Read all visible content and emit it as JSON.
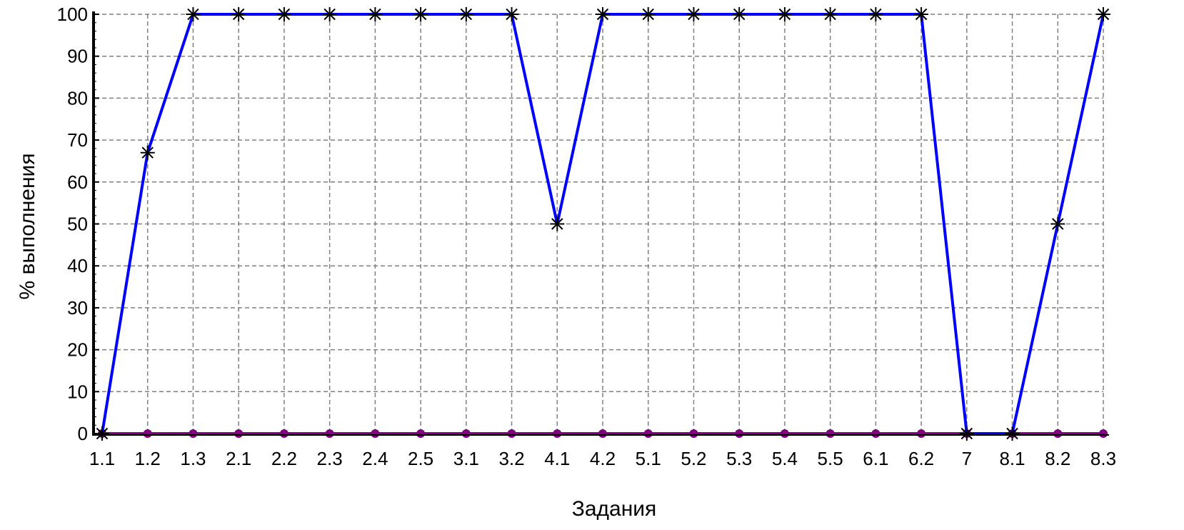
{
  "chart_data": {
    "type": "line",
    "xlabel": "Задания",
    "ylabel": "% выполнения",
    "categories": [
      "1.1",
      "1.2",
      "1.3",
      "2.1",
      "2.2",
      "2.3",
      "2.4",
      "2.5",
      "3.1",
      "3.2",
      "4.1",
      "4.2",
      "5.1",
      "5.2",
      "5.3",
      "5.4",
      "5.5",
      "6.1",
      "6.2",
      "7",
      "8.1",
      "8.2",
      "8.3"
    ],
    "ylim": [
      0,
      100
    ],
    "yticks": [
      0,
      10,
      20,
      30,
      40,
      50,
      60,
      70,
      80,
      90,
      100
    ],
    "grid": true,
    "series": [
      {
        "color": "#0000ff",
        "marker": "asterisk",
        "marker_color": "#000000",
        "values": [
          0,
          67,
          100,
          100,
          100,
          100,
          100,
          100,
          100,
          100,
          50,
          100,
          100,
          100,
          100,
          100,
          100,
          100,
          100,
          0,
          0,
          50,
          100
        ]
      },
      {
        "color": "#800080",
        "marker": "dot",
        "marker_color": "#800080",
        "values": [
          0,
          0,
          0,
          0,
          0,
          0,
          0,
          0,
          0,
          0,
          0,
          0,
          0,
          0,
          0,
          0,
          0,
          0,
          0,
          0,
          0,
          0,
          0
        ]
      }
    ]
  }
}
